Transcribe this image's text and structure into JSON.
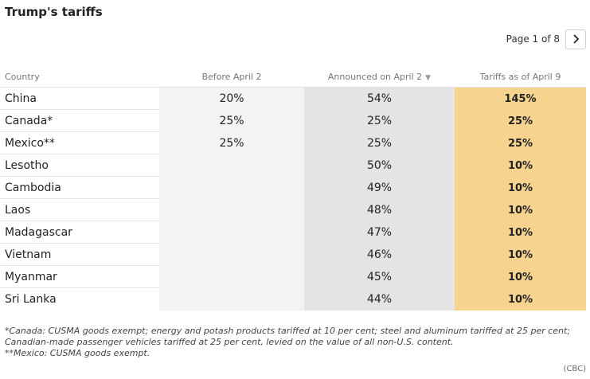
{
  "title": "Trump's tariffs",
  "pager": {
    "text": "Page 1 of 8",
    "next_icon": "chevron-right-icon"
  },
  "columns": {
    "country": "Country",
    "before": "Before April 2",
    "announced": "Announced on April 2",
    "asof": "Tariffs as of April 9",
    "sort_icon": "▼"
  },
  "rows": [
    {
      "country": "China",
      "before": "20%",
      "announced": "54%",
      "asof": "145%"
    },
    {
      "country": "Canada*",
      "before": "25%",
      "announced": "25%",
      "asof": "25%"
    },
    {
      "country": "Mexico**",
      "before": "25%",
      "announced": "25%",
      "asof": "25%"
    },
    {
      "country": "Lesotho",
      "before": "",
      "announced": "50%",
      "asof": "10%"
    },
    {
      "country": "Cambodia",
      "before": "",
      "announced": "49%",
      "asof": "10%"
    },
    {
      "country": "Laos",
      "before": "",
      "announced": "48%",
      "asof": "10%"
    },
    {
      "country": "Madagascar",
      "before": "",
      "announced": "47%",
      "asof": "10%"
    },
    {
      "country": "Vietnam",
      "before": "",
      "announced": "46%",
      "asof": "10%"
    },
    {
      "country": "Myanmar",
      "before": "",
      "announced": "45%",
      "asof": "10%"
    },
    {
      "country": "Sri Lanka",
      "before": "",
      "announced": "44%",
      "asof": "10%"
    }
  ],
  "footnotes": [
    "*Canada: CUSMA goods exempt; energy and potash products tariffed at 10 per cent; steel and aluminum tariffed at 25 per cent;",
    "Canadian-made passenger vehicles tariffed at 25 per cent, levied on the value of all non-U.S. content.",
    "**Mexico: CUSMA goods exempt."
  ],
  "source": "(CBC)",
  "colors": {
    "highlight": "#f6d38e",
    "announced_bg": "#e4e4e4",
    "before_bg": "#f3f3f3"
  }
}
